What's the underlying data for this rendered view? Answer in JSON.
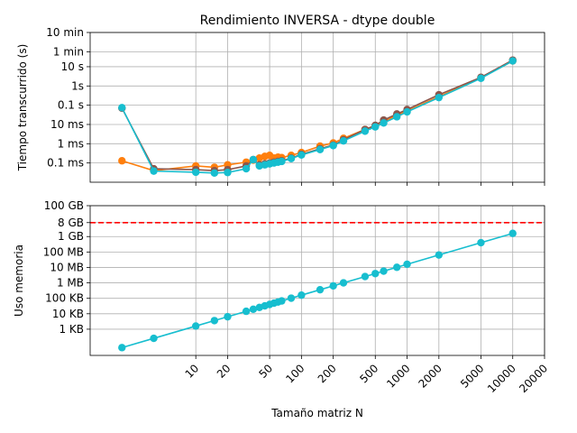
{
  "colors": {
    "blue": "#1f77b4",
    "orange": "#ff7f0e",
    "green": "#2ca02c",
    "red": "#d62728",
    "purple": "#9467bd",
    "brown": "#8c564b",
    "pink": "#e377c2",
    "gray": "#7f7f7f",
    "olive": "#bcbd22",
    "cyan": "#17becf",
    "limit_line": "#ff0000",
    "grid": "#b0b0b0"
  },
  "chart_data": [
    {
      "type": "line",
      "title": "Rendimiento INVERSA - dtype double",
      "xlabel": "",
      "ylabel": "Tiempo transcurrido (s)",
      "xscale": "log",
      "yscale": "log",
      "xlim": [
        1,
        20000
      ],
      "ylim": [
        1e-05,
        600
      ],
      "x_ticks": [
        10,
        20,
        50,
        100,
        200,
        500,
        1000,
        2000,
        5000,
        10000,
        20000
      ],
      "y_ticks": [
        {
          "value": 0.0001,
          "label": "0.1 ms"
        },
        {
          "value": 0.001,
          "label": "1 ms"
        },
        {
          "value": 0.01,
          "label": "10 ms"
        },
        {
          "value": 0.1,
          "label": "0.1 s"
        },
        {
          "value": 1,
          "label": "1s"
        },
        {
          "value": 10,
          "label": "10 s"
        },
        {
          "value": 60,
          "label": "1 min"
        },
        {
          "value": 600,
          "label": "10 min"
        }
      ],
      "grid": true,
      "series": [
        {
          "color": "orange",
          "x": [
            2,
            4,
            10,
            15,
            20,
            30,
            35,
            40,
            45,
            50,
            55,
            60,
            65,
            80,
            100,
            150,
            200,
            250,
            400,
            500,
            600,
            800,
            1000,
            2000,
            5000,
            10000
          ],
          "y": [
            0.00013,
            4e-05,
            7e-05,
            6e-05,
            8e-05,
            0.00011,
            0.00014,
            0.00018,
            0.00022,
            0.00025,
            0.00018,
            0.0002,
            0.00019,
            0.00025,
            0.00035,
            0.00075,
            0.0011,
            0.0019,
            0.0055,
            0.0085,
            0.014,
            0.03,
            0.05,
            0.28,
            2.6,
            20
          ]
        },
        {
          "color": "brown",
          "x": [
            2,
            4,
            10,
            15,
            20,
            30,
            35,
            40,
            45,
            50,
            55,
            60,
            65,
            80,
            100,
            150,
            200,
            250,
            400,
            500,
            600,
            800,
            1000,
            2000,
            5000,
            10000
          ],
          "y": [
            0.07,
            5e-05,
            4.5e-05,
            4e-05,
            4.5e-05,
            7e-05,
            0.00015,
            8e-05,
            9e-05,
            0.0001,
            0.00011,
            0.00012,
            0.00013,
            0.00018,
            0.00028,
            0.00055,
            0.00085,
            0.0016,
            0.0055,
            0.009,
            0.017,
            0.035,
            0.06,
            0.35,
            2.8,
            22
          ]
        },
        {
          "color": "cyan",
          "x": [
            2,
            4,
            10,
            15,
            20,
            30,
            35,
            40,
            45,
            50,
            55,
            60,
            65,
            80,
            100,
            150,
            200,
            250,
            400,
            500,
            600,
            800,
            1000,
            2000,
            5000,
            10000
          ],
          "y": [
            0.075,
            3.8e-05,
            3.3e-05,
            3e-05,
            3.2e-05,
            5e-05,
            0.00015,
            7e-05,
            8e-05,
            9e-05,
            0.0001,
            0.00011,
            0.00012,
            0.00017,
            0.00026,
            0.0005,
            0.0008,
            0.0014,
            0.0045,
            0.0075,
            0.012,
            0.025,
            0.045,
            0.25,
            2.5,
            20
          ]
        }
      ]
    },
    {
      "type": "line",
      "title": "",
      "xlabel": "Tamaño matriz N",
      "ylabel": "Uso memoria",
      "xscale": "log",
      "yscale": "log",
      "xlim": [
        1,
        20000
      ],
      "ylim": [
        20,
        100000000000
      ],
      "x_ticks": [
        10,
        20,
        50,
        100,
        200,
        500,
        1000,
        2000,
        5000,
        10000,
        20000
      ],
      "y_ticks": [
        {
          "value": 1000,
          "label": "1 KB"
        },
        {
          "value": 10000,
          "label": "10 KB"
        },
        {
          "value": 100000,
          "label": "100 KB"
        },
        {
          "value": 1000000,
          "label": "1 MB"
        },
        {
          "value": 10000000,
          "label": "10 MB"
        },
        {
          "value": 100000000,
          "label": "100 MB"
        },
        {
          "value": 1000000000,
          "label": "1 GB"
        },
        {
          "value": 8000000000,
          "label": "8 GB"
        },
        {
          "value": 100000000000,
          "label": "100 GB"
        }
      ],
      "grid": true,
      "hline": {
        "value": 8000000000,
        "color": "limit_line",
        "style": "dashed"
      },
      "series": [
        {
          "color": "cyan",
          "x": [
            2,
            4,
            10,
            15,
            20,
            30,
            35,
            40,
            45,
            50,
            55,
            60,
            65,
            80,
            100,
            150,
            200,
            250,
            400,
            500,
            600,
            800,
            1000,
            2000,
            5000,
            10000
          ],
          "y": [
            64,
            256,
            1600,
            3600,
            6400,
            14400,
            19600,
            25600,
            32400,
            40000,
            48400,
            57600,
            67600,
            102400,
            160000,
            360000,
            640000,
            1000000,
            2560000,
            4000000,
            5760000,
            10240000,
            16000000,
            64000000,
            400000000,
            1600000000
          ]
        }
      ]
    }
  ]
}
